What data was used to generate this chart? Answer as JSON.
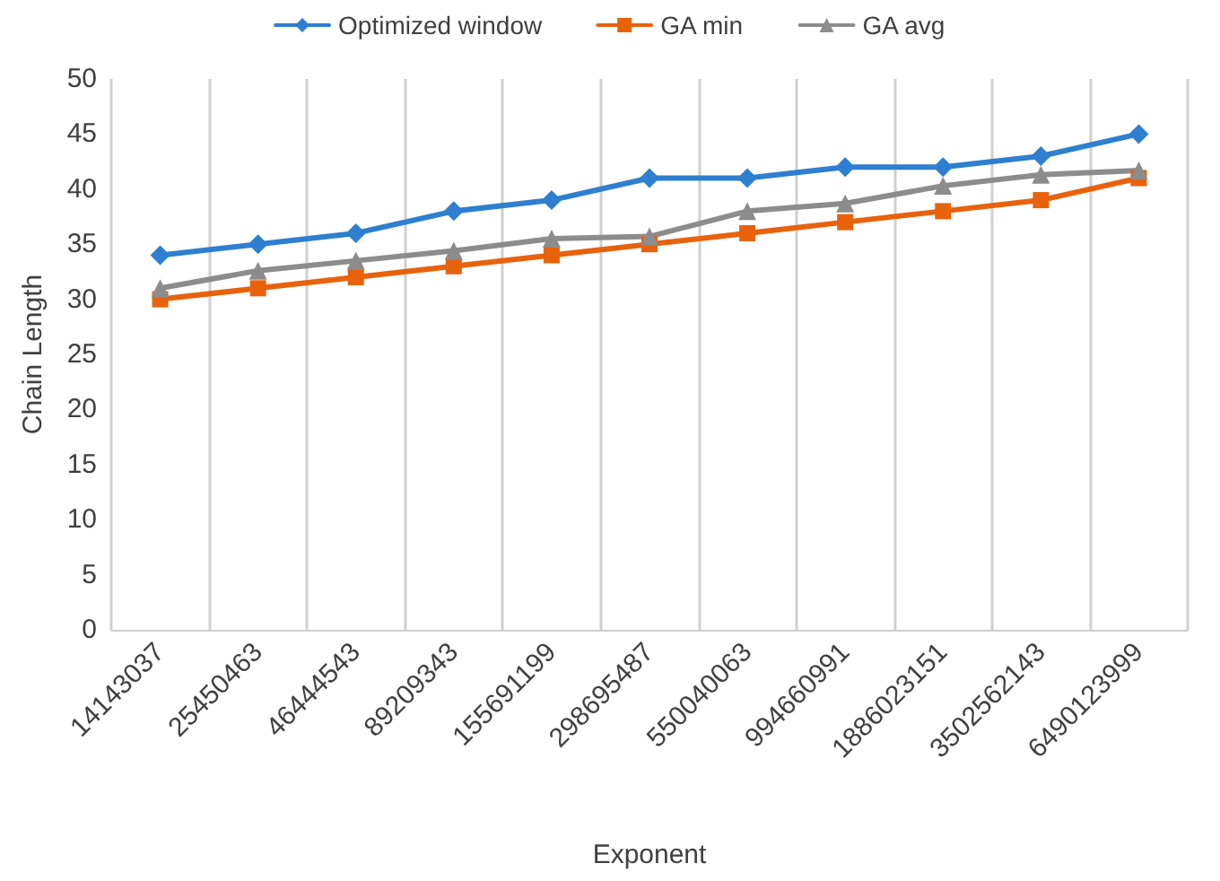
{
  "chart_data": {
    "type": "line",
    "xlabel": "Exponent",
    "ylabel": "Chain Length",
    "categories": [
      "14143037",
      "25450463",
      "46444543",
      "89209343",
      "155691199",
      "298695487",
      "550040063",
      "994660991",
      "1886023151",
      "3502562143",
      "6490123999"
    ],
    "series": [
      {
        "name": "Optimized window",
        "color": "#2e7fd0",
        "marker": "diamond",
        "values": [
          34,
          35,
          36,
          38,
          39,
          41,
          41,
          42,
          42,
          43,
          45
        ]
      },
      {
        "name": "GA min",
        "color": "#e8620c",
        "marker": "square",
        "values": [
          30,
          31,
          32,
          33,
          34,
          35,
          36,
          37,
          38,
          39,
          41
        ]
      },
      {
        "name": "GA avg",
        "color": "#8c8c8c",
        "marker": "triangle",
        "values": [
          31,
          32.6,
          33.5,
          34.4,
          35.5,
          35.7,
          38,
          38.7,
          40.3,
          41.3,
          41.7
        ]
      }
    ],
    "ylim": [
      0,
      50
    ],
    "yticks": [
      0,
      5,
      10,
      15,
      20,
      25,
      30,
      35,
      40,
      45,
      50
    ],
    "grid": "x",
    "legend": "top",
    "line_style": "solid"
  }
}
